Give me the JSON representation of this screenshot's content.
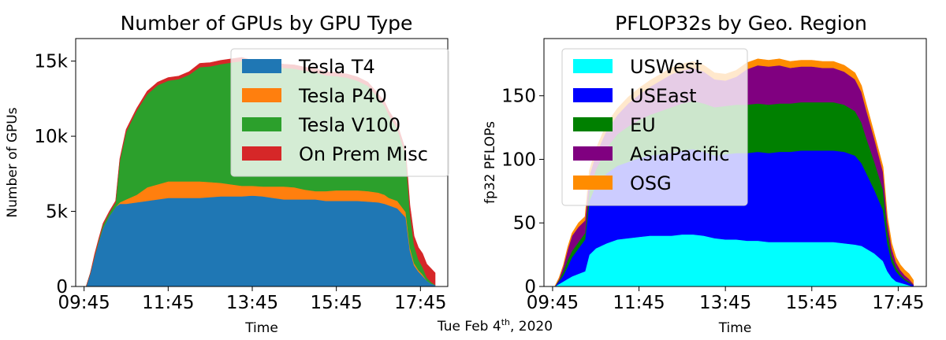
{
  "caption": {
    "text": "Tue Feb 4",
    "sup": "th",
    "tail": ", 2020"
  },
  "chart_data": [
    {
      "type": "area",
      "stacked": true,
      "title": "Number of GPUs by GPU Type",
      "xlabel": "Time",
      "ylabel": "Number of GPUs",
      "x_ticks": [
        "09:45",
        "11:45",
        "13:45",
        "15:45",
        "17:45"
      ],
      "x_tick_hours": [
        9.75,
        11.75,
        13.75,
        15.75,
        17.75
      ],
      "xlim": [
        9.55,
        18.4
      ],
      "ylim": [
        0,
        16500
      ],
      "y_ticks": [
        0,
        5000,
        10000,
        15000
      ],
      "y_tick_labels": [
        "0",
        "5k",
        "10k",
        "15k"
      ],
      "legend": {
        "placement": "top-right",
        "alpha": 0.8
      },
      "x": [
        9.8,
        9.9,
        10.0,
        10.1,
        10.2,
        10.35,
        10.5,
        10.6,
        10.75,
        11.0,
        11.25,
        11.5,
        11.75,
        12.0,
        12.25,
        12.5,
        12.75,
        13.0,
        13.25,
        13.5,
        13.75,
        14.0,
        14.25,
        14.5,
        14.75,
        15.0,
        15.25,
        15.5,
        15.75,
        16.0,
        16.25,
        16.5,
        16.75,
        16.9,
        17.0,
        17.2,
        17.4,
        17.5,
        17.6,
        17.7,
        17.8,
        17.9,
        18.0,
        18.1
      ],
      "series": [
        {
          "name": "Tesla T4",
          "color": "#1f77b4",
          "values": [
            0,
            900,
            2000,
            3000,
            3900,
            4700,
            5300,
            5500,
            5500,
            5600,
            5700,
            5800,
            5900,
            5900,
            5900,
            5900,
            5950,
            6000,
            6000,
            6000,
            6050,
            6000,
            5900,
            5800,
            5800,
            5800,
            5800,
            5700,
            5700,
            5700,
            5700,
            5650,
            5600,
            5500,
            5400,
            5200,
            4600,
            2400,
            1400,
            1000,
            700,
            400,
            200,
            100
          ]
        },
        {
          "name": "Tesla P40",
          "color": "#ff7f0e",
          "values": [
            0,
            0,
            0,
            0,
            0,
            0,
            0,
            100,
            300,
            500,
            900,
            1000,
            1100,
            1100,
            1100,
            1100,
            1000,
            900,
            800,
            700,
            650,
            650,
            750,
            850,
            800,
            650,
            550,
            650,
            700,
            700,
            700,
            700,
            650,
            600,
            500,
            500,
            350,
            200,
            150,
            100,
            100,
            0,
            0,
            0
          ]
        },
        {
          "name": "Tesla V100",
          "color": "#2ca02c",
          "values": [
            0,
            0,
            50,
            100,
            200,
            200,
            300,
            2800,
            4500,
            5600,
            6200,
            6600,
            6700,
            6800,
            7100,
            7600,
            7700,
            7900,
            8100,
            8300,
            8100,
            8000,
            8000,
            7900,
            7900,
            7900,
            7900,
            7700,
            7600,
            7500,
            7300,
            7000,
            6300,
            5900,
            5500,
            4800,
            3800,
            2300,
            1200,
            700,
            500,
            200,
            100,
            0
          ]
        },
        {
          "name": "On Prem Misc",
          "color": "#d62728",
          "values": [
            0,
            0,
            100,
            100,
            100,
            100,
            100,
            100,
            150,
            150,
            200,
            200,
            200,
            200,
            200,
            250,
            250,
            250,
            250,
            250,
            250,
            250,
            250,
            250,
            250,
            250,
            250,
            250,
            250,
            250,
            250,
            250,
            250,
            300,
            300,
            300,
            300,
            500,
            600,
            800,
            900,
            900,
            900,
            800
          ]
        }
      ]
    },
    {
      "type": "area",
      "stacked": true,
      "title": "PFLOP32s by Geo. Region",
      "xlabel": "Time",
      "ylabel": "fp32 PFLOPs",
      "x_ticks": [
        "09:45",
        "11:45",
        "13:45",
        "15:45",
        "17:45"
      ],
      "x_tick_hours": [
        9.75,
        11.75,
        13.75,
        15.75,
        17.75
      ],
      "xlim": [
        9.55,
        18.4
      ],
      "ylim": [
        0,
        195
      ],
      "y_ticks": [
        0,
        50,
        100,
        150
      ],
      "y_tick_labels": [
        "0",
        "50",
        "100",
        "150"
      ],
      "legend": {
        "placement": "top-left",
        "alpha": 0.8
      },
      "x": [
        9.8,
        9.9,
        10.0,
        10.1,
        10.2,
        10.35,
        10.5,
        10.6,
        10.75,
        11.0,
        11.25,
        11.5,
        11.75,
        12.0,
        12.25,
        12.5,
        12.75,
        13.0,
        13.25,
        13.5,
        13.75,
        14.0,
        14.25,
        14.5,
        14.75,
        15.0,
        15.25,
        15.5,
        15.75,
        16.0,
        16.25,
        16.5,
        16.75,
        16.9,
        17.0,
        17.2,
        17.4,
        17.5,
        17.6,
        17.7,
        17.8,
        17.9,
        18.0,
        18.1
      ],
      "series": [
        {
          "name": "USWest",
          "color": "#00ffff",
          "values": [
            0,
            2,
            4,
            6,
            8,
            10,
            12,
            25,
            30,
            34,
            37,
            38,
            39,
            40,
            40,
            40,
            41,
            41,
            40,
            38,
            37,
            37,
            36,
            36,
            35,
            35,
            35,
            35,
            35,
            35,
            35,
            34,
            33,
            32,
            30,
            26,
            20,
            12,
            7,
            4,
            3,
            2,
            1,
            0
          ]
        },
        {
          "name": "USEast",
          "color": "#0000ff",
          "values": [
            0,
            2,
            5,
            10,
            15,
            20,
            25,
            42,
            50,
            55,
            58,
            60,
            62,
            63,
            64,
            65,
            66,
            67,
            66,
            65,
            67,
            68,
            69,
            70,
            70,
            71,
            71,
            72,
            72,
            72,
            72,
            72,
            70,
            65,
            60,
            50,
            40,
            22,
            12,
            8,
            5,
            3,
            2,
            1
          ]
        },
        {
          "name": "EU",
          "color": "#008000",
          "values": [
            0,
            1,
            3,
            5,
            5,
            5,
            5,
            8,
            12,
            20,
            25,
            28,
            30,
            32,
            34,
            36,
            37,
            38,
            38,
            38,
            38,
            38,
            38,
            38,
            38,
            38,
            38,
            38,
            38,
            38,
            38,
            37,
            35,
            32,
            28,
            22,
            16,
            9,
            5,
            3,
            2,
            1,
            1,
            0
          ]
        },
        {
          "name": "AsiaPacific",
          "color": "#800080",
          "values": [
            0,
            1,
            4,
            8,
            12,
            12,
            10,
            12,
            12,
            14,
            15,
            18,
            20,
            22,
            24,
            26,
            26,
            26,
            25,
            22,
            20,
            22,
            28,
            30,
            30,
            30,
            28,
            28,
            28,
            27,
            27,
            26,
            25,
            24,
            22,
            18,
            14,
            8,
            6,
            4,
            3,
            3,
            2,
            1
          ]
        },
        {
          "name": "OSG",
          "color": "#ff8c00",
          "values": [
            0,
            1,
            1,
            2,
            2,
            3,
            3,
            4,
            4,
            5,
            5,
            5,
            5,
            5,
            5,
            5,
            5,
            5,
            5,
            5,
            5,
            5,
            5,
            5,
            5,
            5,
            5,
            5,
            5,
            5,
            5,
            5,
            5,
            5,
            5,
            4,
            4,
            4,
            4,
            4,
            4,
            4,
            4,
            3
          ]
        }
      ]
    }
  ]
}
